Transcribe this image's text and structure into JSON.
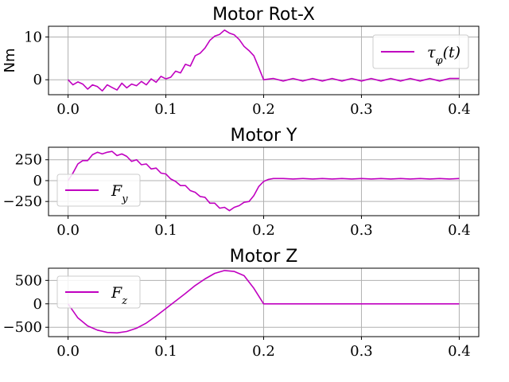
{
  "colors": {
    "series": "#c000c0",
    "grid": "#b0b0b0"
  },
  "chart_data": [
    {
      "type": "line",
      "title": "Motor Rot-X",
      "xlabel": "",
      "ylabel": "Nm",
      "xlim": [
        -0.02,
        0.42
      ],
      "ylim": [
        -3.5,
        12.5
      ],
      "xticks": [
        0.0,
        0.1,
        0.2,
        0.3,
        0.4
      ],
      "xtick_labels": [
        "0.0",
        "0.1",
        "0.2",
        "0.3",
        "0.4"
      ],
      "yticks": [
        0,
        10
      ],
      "ytick_labels": [
        "0",
        "10"
      ],
      "grid": true,
      "legend_position": "upper right",
      "series": [
        {
          "name": "τφ(t)",
          "x": [
            0.0,
            0.005,
            0.01,
            0.015,
            0.02,
            0.025,
            0.03,
            0.035,
            0.04,
            0.045,
            0.05,
            0.055,
            0.06,
            0.065,
            0.07,
            0.075,
            0.08,
            0.085,
            0.09,
            0.095,
            0.1,
            0.105,
            0.11,
            0.115,
            0.12,
            0.125,
            0.13,
            0.135,
            0.14,
            0.145,
            0.15,
            0.155,
            0.16,
            0.165,
            0.17,
            0.175,
            0.18,
            0.185,
            0.19,
            0.195,
            0.2,
            0.21,
            0.22,
            0.23,
            0.24,
            0.25,
            0.26,
            0.27,
            0.28,
            0.29,
            0.3,
            0.31,
            0.32,
            0.33,
            0.34,
            0.35,
            0.36,
            0.37,
            0.38,
            0.39,
            0.4
          ],
          "y": [
            0.0,
            -1.2,
            -0.5,
            -1.0,
            -2.2,
            -1.2,
            -1.6,
            -2.6,
            -1.2,
            -1.8,
            -2.4,
            -0.8,
            -1.9,
            -1.0,
            -1.4,
            -0.4,
            -1.2,
            0.2,
            -0.6,
            0.8,
            0.2,
            0.6,
            2.0,
            1.6,
            3.6,
            3.2,
            5.6,
            6.2,
            7.4,
            9.2,
            10.2,
            10.6,
            11.6,
            10.9,
            10.5,
            9.4,
            7.8,
            6.8,
            5.6,
            2.8,
            0.0,
            0.3,
            -0.3,
            0.3,
            -0.3,
            0.3,
            -0.3,
            0.3,
            -0.3,
            0.3,
            -0.3,
            0.3,
            -0.3,
            0.3,
            -0.3,
            0.3,
            -0.3,
            0.3,
            -0.3,
            0.3,
            0.3
          ]
        }
      ]
    },
    {
      "type": "line",
      "title": "Motor Y",
      "xlabel": "",
      "ylabel": "",
      "xlim": [
        -0.02,
        0.42
      ],
      "ylim": [
        -420,
        400
      ],
      "xticks": [
        0.0,
        0.1,
        0.2,
        0.3,
        0.4
      ],
      "xtick_labels": [
        "0.0",
        "0.1",
        "0.2",
        "0.3",
        "0.4"
      ],
      "yticks": [
        250,
        0,
        -250
      ],
      "ytick_labels": [
        "250",
        "0",
        "−250"
      ],
      "grid": true,
      "legend_position": "center left",
      "series": [
        {
          "name": "Fy",
          "x": [
            0.0,
            0.005,
            0.01,
            0.015,
            0.02,
            0.025,
            0.03,
            0.035,
            0.04,
            0.045,
            0.05,
            0.055,
            0.06,
            0.065,
            0.07,
            0.075,
            0.08,
            0.085,
            0.09,
            0.095,
            0.1,
            0.105,
            0.11,
            0.115,
            0.12,
            0.125,
            0.13,
            0.135,
            0.14,
            0.145,
            0.15,
            0.155,
            0.16,
            0.165,
            0.17,
            0.175,
            0.18,
            0.185,
            0.19,
            0.195,
            0.2,
            0.205,
            0.21,
            0.22,
            0.23,
            0.24,
            0.25,
            0.26,
            0.27,
            0.28,
            0.29,
            0.3,
            0.31,
            0.32,
            0.33,
            0.34,
            0.35,
            0.36,
            0.37,
            0.38,
            0.39,
            0.4
          ],
          "y": [
            0,
            90,
            200,
            240,
            240,
            310,
            340,
            320,
            340,
            350,
            300,
            320,
            290,
            230,
            250,
            190,
            200,
            140,
            150,
            90,
            80,
            20,
            -10,
            -60,
            -60,
            -120,
            -140,
            -190,
            -200,
            -270,
            -270,
            -330,
            -320,
            -360,
            -320,
            -300,
            -260,
            -250,
            -180,
            -70,
            -10,
            15,
            25,
            25,
            20,
            25,
            20,
            25,
            20,
            25,
            20,
            25,
            20,
            25,
            20,
            25,
            20,
            25,
            20,
            25,
            20,
            25
          ]
        }
      ]
    },
    {
      "type": "line",
      "title": "Motor Z",
      "xlabel": "",
      "ylabel": "",
      "xlim": [
        -0.02,
        0.42
      ],
      "ylim": [
        -700,
        760
      ],
      "xticks": [
        0.0,
        0.1,
        0.2,
        0.3,
        0.4
      ],
      "xtick_labels": [
        "0.0",
        "0.1",
        "0.2",
        "0.3",
        "0.4"
      ],
      "yticks": [
        500,
        0,
        -500
      ],
      "ytick_labels": [
        "500",
        "0",
        "−500"
      ],
      "grid": true,
      "legend_position": "upper left",
      "series": [
        {
          "name": "Fz",
          "x": [
            0.0,
            0.01,
            0.02,
            0.03,
            0.04,
            0.05,
            0.06,
            0.07,
            0.08,
            0.09,
            0.1,
            0.11,
            0.12,
            0.13,
            0.14,
            0.15,
            0.16,
            0.17,
            0.18,
            0.19,
            0.2,
            0.21,
            0.25,
            0.3,
            0.35,
            0.4
          ],
          "y": [
            0,
            -300,
            -470,
            -560,
            -610,
            -620,
            -590,
            -520,
            -410,
            -260,
            -100,
            60,
            220,
            390,
            530,
            650,
            710,
            690,
            600,
            330,
            0,
            0,
            0,
            0,
            0,
            0
          ]
        }
      ]
    }
  ]
}
